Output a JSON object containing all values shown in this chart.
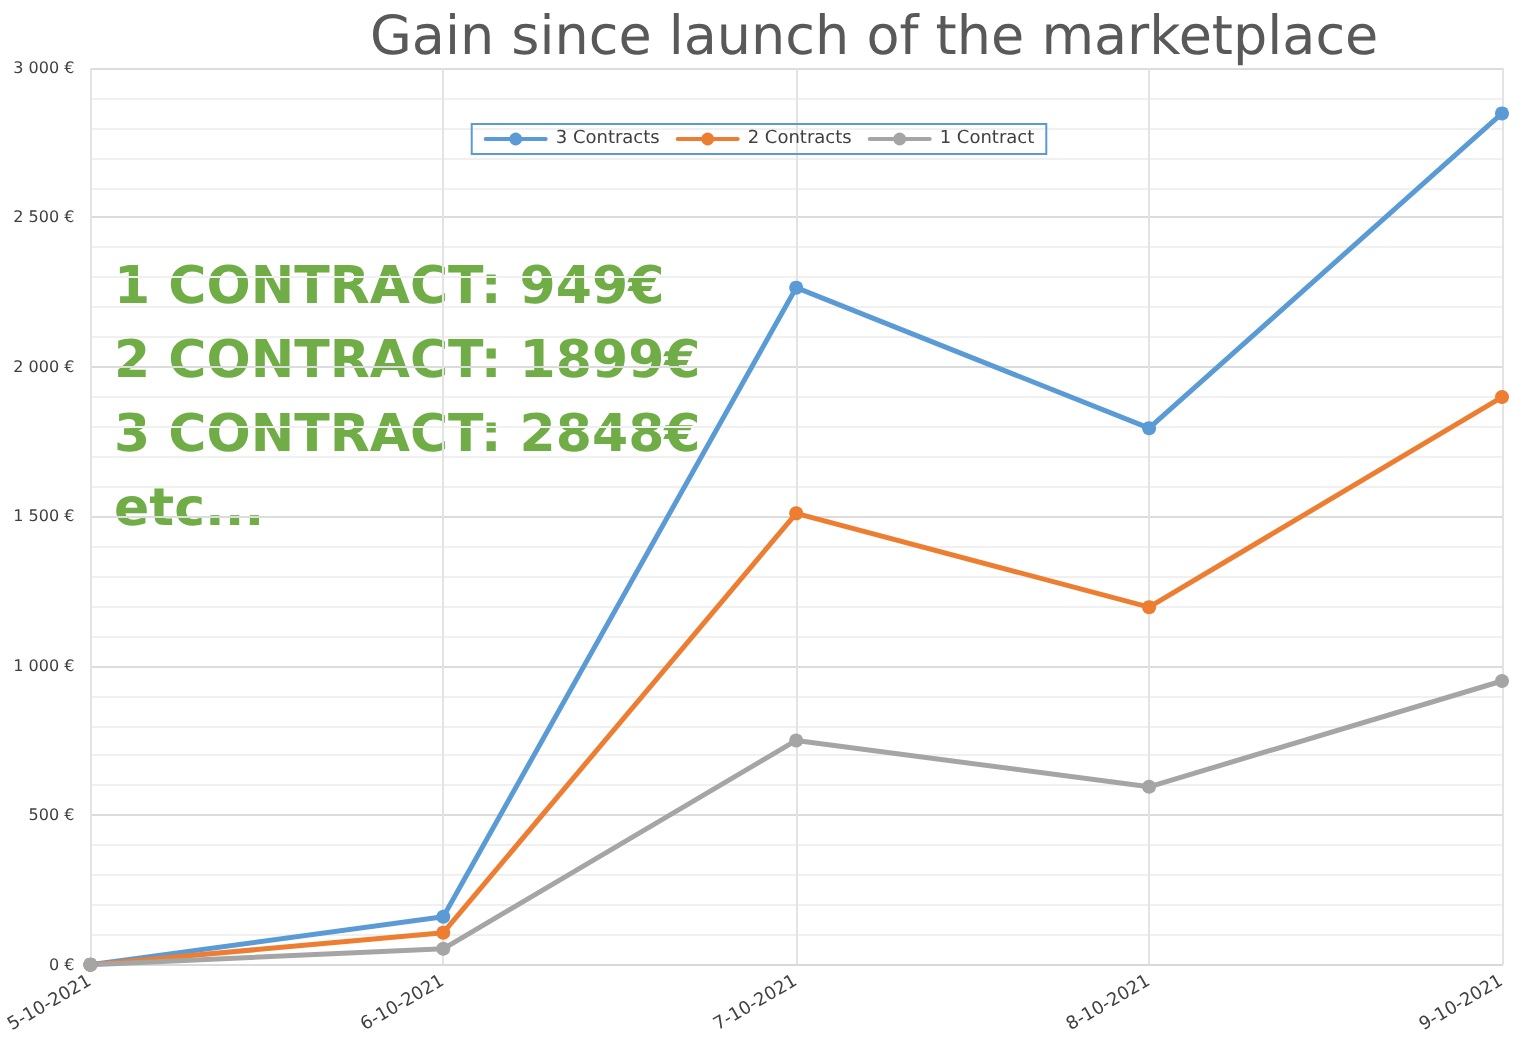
{
  "chart_data": {
    "type": "line",
    "title": "Gain since launch of the marketplace",
    "categories": [
      "5-10-2021",
      "6-10-2021",
      "7-10-2021",
      "8-10-2021",
      "9-10-2021"
    ],
    "series": [
      {
        "name": "3 Contracts",
        "color": "#5b9bd5",
        "values": [
          0,
          160,
          2265,
          1795,
          2848
        ]
      },
      {
        "name": "2 Contracts",
        "color": "#ed7d31",
        "values": [
          0,
          107,
          1510,
          1196,
          1899
        ]
      },
      {
        "name": "1 Contract",
        "color": "#a5a5a5",
        "values": [
          0,
          53,
          750,
          595,
          949
        ]
      }
    ],
    "ylim": [
      0,
      3000
    ],
    "yticks": [
      {
        "value": 0,
        "label": "0 €"
      },
      {
        "value": 500,
        "label": "500 €"
      },
      {
        "value": 1000,
        "label": "1 000 €"
      },
      {
        "value": 1500,
        "label": "1 500 €"
      },
      {
        "value": 2000,
        "label": "2 000 €"
      },
      {
        "value": 2500,
        "label": "2 500 €"
      },
      {
        "value": 3000,
        "label": "3 000 €"
      }
    ],
    "annotations": [
      "1 CONTRACT: 949€\n2 CONTRACT: 1899€\n3 CONTRACT: 2848€\netc..."
    ],
    "grid": true,
    "legend": "top",
    "marker": "circle",
    "line_style": "solid"
  }
}
